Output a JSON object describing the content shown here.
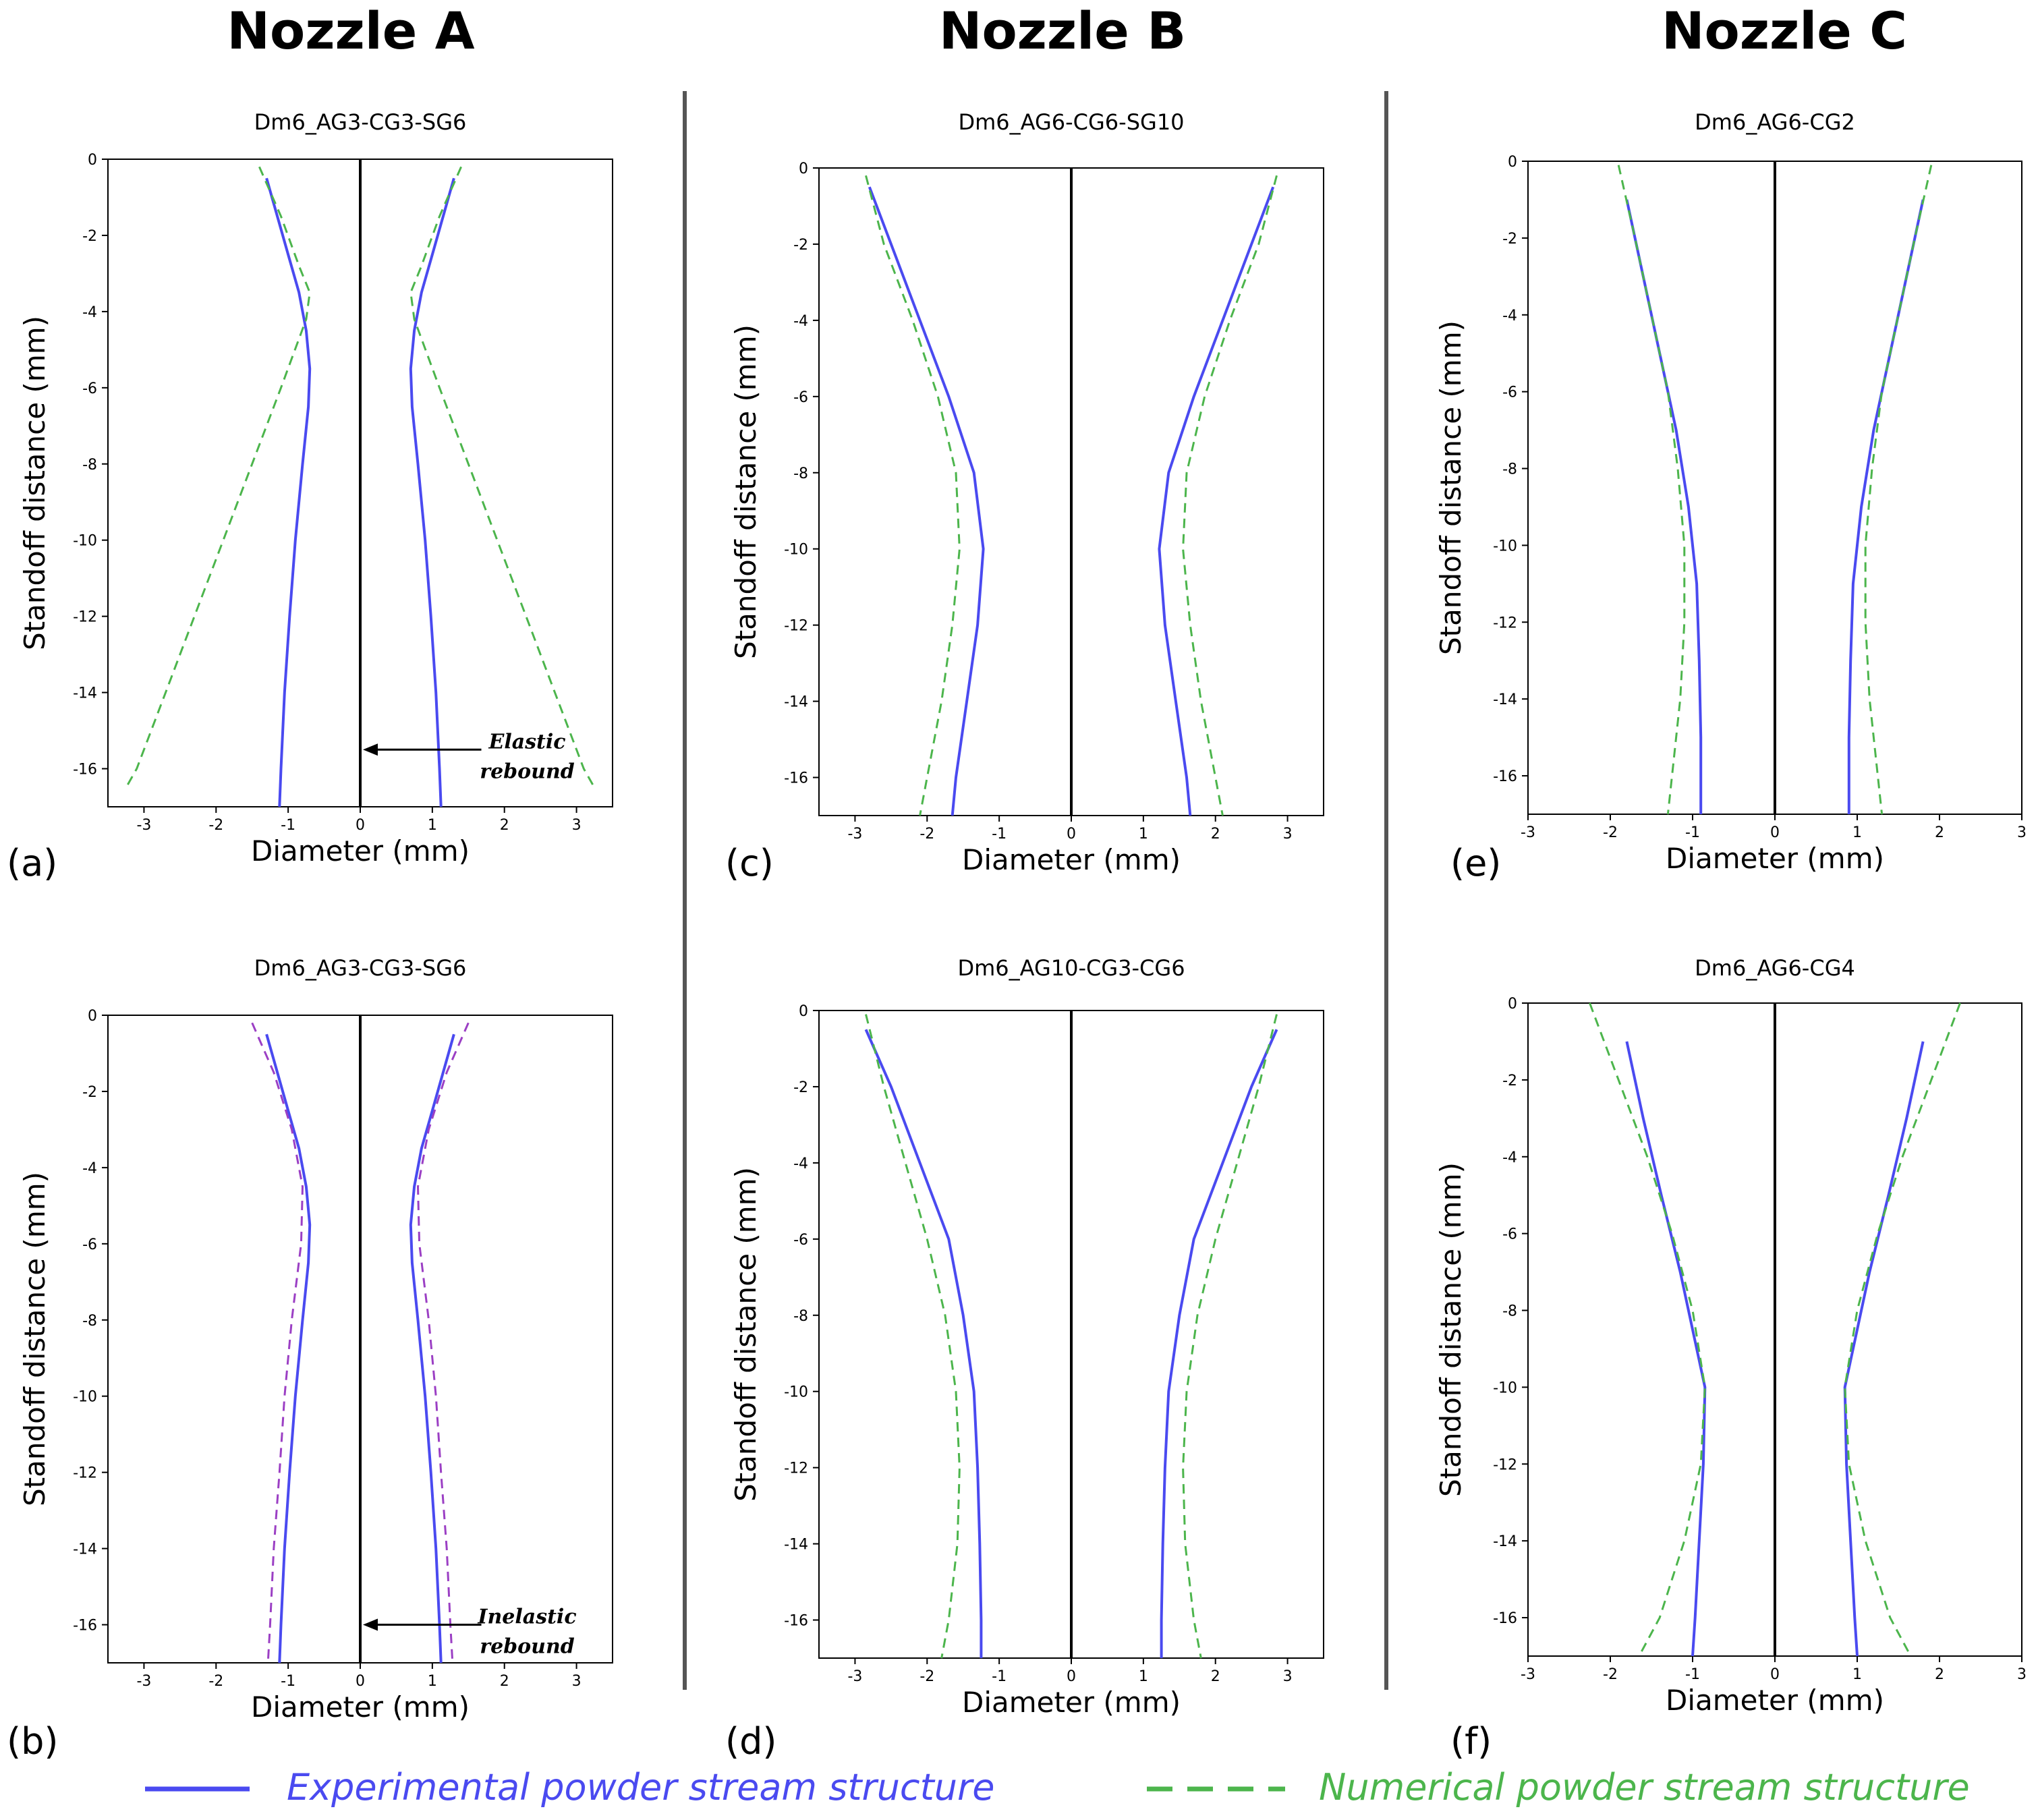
{
  "nozzles": [
    "Nozzle A",
    "Nozzle B",
    "Nozzle C"
  ],
  "legend": {
    "experimental": {
      "label": "Experimental powder stream structure",
      "color": "#4a4af0"
    },
    "numerical": {
      "label": "Numerical powder stream structure",
      "color": "#4cb54c"
    }
  },
  "chart_data": [
    {
      "id": "a",
      "type": "line",
      "panel_label": "(a)",
      "title": "Dm6_AG3-CG3-SG6",
      "xlabel": "Diameter (mm)",
      "ylabel": "Standoff distance (mm)",
      "xlim": [
        -3.5,
        3.5
      ],
      "ylim": [
        -17,
        0
      ],
      "xticks": [
        -3,
        -2,
        -1,
        0,
        1,
        2,
        3
      ],
      "yticks": [
        0,
        -2,
        -4,
        -6,
        -8,
        -10,
        -12,
        -14,
        -16
      ],
      "annotation": {
        "lines": [
          "Elastic",
          "rebound"
        ],
        "arrow_y": -15.5
      },
      "series": [
        {
          "style": "experimental",
          "right": [
            [
              1.3,
              -0.5
            ],
            [
              1.15,
              -1.5
            ],
            [
              1.0,
              -2.5
            ],
            [
              0.85,
              -3.5
            ],
            [
              0.75,
              -4.5
            ],
            [
              0.7,
              -5.5
            ],
            [
              0.72,
              -6.5
            ],
            [
              0.8,
              -8
            ],
            [
              0.9,
              -10
            ],
            [
              0.98,
              -12
            ],
            [
              1.05,
              -14
            ],
            [
              1.1,
              -16
            ],
            [
              1.12,
              -17
            ]
          ]
        },
        {
          "style": "numerical",
          "color": "#4cb54c",
          "right": [
            [
              1.4,
              -0.2
            ],
            [
              1.1,
              -1.5
            ],
            [
              0.85,
              -2.8
            ],
            [
              0.7,
              -3.5
            ],
            [
              0.75,
              -4.2
            ],
            [
              1.1,
              -6
            ],
            [
              1.5,
              -8
            ],
            [
              1.9,
              -10
            ],
            [
              2.3,
              -12
            ],
            [
              2.7,
              -14
            ],
            [
              3.1,
              -16
            ],
            [
              3.25,
              -16.5
            ]
          ]
        }
      ]
    },
    {
      "id": "b",
      "type": "line",
      "panel_label": "(b)",
      "title": "Dm6_AG3-CG3-SG6",
      "xlabel": "Diameter (mm)",
      "ylabel": "Standoff distance (mm)",
      "xlim": [
        -3.5,
        3.5
      ],
      "ylim": [
        -17,
        0
      ],
      "xticks": [
        -3,
        -2,
        -1,
        0,
        1,
        2,
        3
      ],
      "yticks": [
        0,
        -2,
        -4,
        -6,
        -8,
        -10,
        -12,
        -14,
        -16
      ],
      "annotation": {
        "lines": [
          "Inelastic",
          "rebound"
        ],
        "arrow_y": -16
      },
      "series": [
        {
          "style": "experimental",
          "right": [
            [
              1.3,
              -0.5
            ],
            [
              1.15,
              -1.5
            ],
            [
              1.0,
              -2.5
            ],
            [
              0.85,
              -3.5
            ],
            [
              0.75,
              -4.5
            ],
            [
              0.7,
              -5.5
            ],
            [
              0.72,
              -6.5
            ],
            [
              0.8,
              -8
            ],
            [
              0.9,
              -10
            ],
            [
              0.98,
              -12
            ],
            [
              1.05,
              -14
            ],
            [
              1.1,
              -16
            ],
            [
              1.12,
              -17
            ]
          ]
        },
        {
          "style": "numerical",
          "color": "#9b3fc4",
          "right": [
            [
              1.5,
              -0.2
            ],
            [
              1.2,
              -1.5
            ],
            [
              0.95,
              -3
            ],
            [
              0.8,
              -4.5
            ],
            [
              0.82,
              -6
            ],
            [
              0.95,
              -8
            ],
            [
              1.05,
              -10
            ],
            [
              1.12,
              -12
            ],
            [
              1.2,
              -14
            ],
            [
              1.25,
              -16
            ],
            [
              1.28,
              -17
            ]
          ]
        }
      ]
    },
    {
      "id": "c",
      "type": "line",
      "panel_label": "(c)",
      "title": "Dm6_AG6-CG6-SG10",
      "xlabel": "Diameter (mm)",
      "ylabel": "Standoff distance (mm)",
      "xlim": [
        -3.5,
        3.5
      ],
      "ylim": [
        -17,
        0
      ],
      "xticks": [
        -3,
        -2,
        -1,
        0,
        1,
        2,
        3
      ],
      "yticks": [
        0,
        -2,
        -4,
        -6,
        -8,
        -10,
        -12,
        -14,
        -16
      ],
      "series": [
        {
          "style": "experimental",
          "right": [
            [
              2.8,
              -0.5
            ],
            [
              2.5,
              -2
            ],
            [
              2.1,
              -4
            ],
            [
              1.7,
              -6
            ],
            [
              1.35,
              -8
            ],
            [
              1.22,
              -10
            ],
            [
              1.3,
              -12
            ],
            [
              1.45,
              -14
            ],
            [
              1.6,
              -16
            ],
            [
              1.65,
              -17
            ]
          ]
        },
        {
          "style": "numerical",
          "color": "#4cb54c",
          "right": [
            [
              2.85,
              -0.2
            ],
            [
              2.6,
              -2
            ],
            [
              2.2,
              -4
            ],
            [
              1.85,
              -6
            ],
            [
              1.6,
              -8
            ],
            [
              1.55,
              -10
            ],
            [
              1.65,
              -12
            ],
            [
              1.8,
              -14
            ],
            [
              2.0,
              -16
            ],
            [
              2.1,
              -17
            ]
          ]
        }
      ]
    },
    {
      "id": "d",
      "type": "line",
      "panel_label": "(d)",
      "title": "Dm6_AG10-CG3-CG6",
      "xlabel": "Diameter (mm)",
      "ylabel": "Standoff distance (mm)",
      "xlim": [
        -3.5,
        3.5
      ],
      "ylim": [
        -17,
        0
      ],
      "xticks": [
        -3,
        -2,
        -1,
        0,
        1,
        2,
        3
      ],
      "yticks": [
        0,
        -2,
        -4,
        -6,
        -8,
        -10,
        -12,
        -14,
        -16
      ],
      "series": [
        {
          "style": "experimental",
          "right": [
            [
              2.85,
              -0.5
            ],
            [
              2.5,
              -2
            ],
            [
              2.1,
              -4
            ],
            [
              1.7,
              -6
            ],
            [
              1.5,
              -8
            ],
            [
              1.35,
              -10
            ],
            [
              1.3,
              -12
            ],
            [
              1.27,
              -14
            ],
            [
              1.25,
              -16
            ],
            [
              1.25,
              -17
            ]
          ]
        },
        {
          "style": "numerical",
          "color": "#4cb54c",
          "right": [
            [
              2.85,
              -0.1
            ],
            [
              2.6,
              -2
            ],
            [
              2.3,
              -4
            ],
            [
              2.0,
              -6
            ],
            [
              1.75,
              -8
            ],
            [
              1.6,
              -10
            ],
            [
              1.55,
              -12
            ],
            [
              1.58,
              -14
            ],
            [
              1.7,
              -16
            ],
            [
              1.8,
              -17
            ]
          ]
        }
      ]
    },
    {
      "id": "e",
      "type": "line",
      "panel_label": "(e)",
      "title": "Dm6_AG6-CG2",
      "xlabel": "Diameter (mm)",
      "ylabel": "Standoff distance (mm)",
      "xlim": [
        -3,
        3
      ],
      "ylim": [
        -17,
        0
      ],
      "xticks": [
        -3,
        -2,
        -1,
        0,
        1,
        2,
        3
      ],
      "yticks": [
        0,
        -2,
        -4,
        -6,
        -8,
        -10,
        -12,
        -14,
        -16
      ],
      "series": [
        {
          "style": "experimental",
          "right": [
            [
              1.8,
              -1
            ],
            [
              1.6,
              -3
            ],
            [
              1.4,
              -5
            ],
            [
              1.2,
              -7
            ],
            [
              1.05,
              -9
            ],
            [
              0.95,
              -11
            ],
            [
              0.92,
              -13
            ],
            [
              0.9,
              -15
            ],
            [
              0.9,
              -17
            ]
          ]
        },
        {
          "style": "numerical",
          "color": "#4cb54c",
          "right": [
            [
              1.9,
              -0.1
            ],
            [
              1.7,
              -2
            ],
            [
              1.5,
              -4
            ],
            [
              1.3,
              -6
            ],
            [
              1.18,
              -8
            ],
            [
              1.1,
              -10
            ],
            [
              1.1,
              -12
            ],
            [
              1.15,
              -14
            ],
            [
              1.25,
              -16
            ],
            [
              1.3,
              -17
            ]
          ]
        }
      ]
    },
    {
      "id": "f",
      "type": "line",
      "panel_label": "(f)",
      "title": "Dm6_AG6-CG4",
      "xlabel": "Diameter (mm)",
      "ylabel": "Standoff distance (mm)",
      "xlim": [
        -3,
        3
      ],
      "ylim": [
        -17,
        0
      ],
      "xticks": [
        -3,
        -2,
        -1,
        0,
        1,
        2,
        3
      ],
      "yticks": [
        0,
        -2,
        -4,
        -6,
        -8,
        -10,
        -12,
        -14,
        -16
      ],
      "series": [
        {
          "style": "experimental",
          "right": [
            [
              1.8,
              -1
            ],
            [
              1.6,
              -3
            ],
            [
              1.38,
              -5
            ],
            [
              1.15,
              -7
            ],
            [
              0.95,
              -9
            ],
            [
              0.85,
              -10
            ],
            [
              0.87,
              -12
            ],
            [
              0.92,
              -14
            ],
            [
              0.97,
              -16
            ],
            [
              1.0,
              -17
            ]
          ]
        },
        {
          "style": "numerical",
          "color": "#4cb54c",
          "right": [
            [
              2.25,
              0
            ],
            [
              1.9,
              -2
            ],
            [
              1.55,
              -4
            ],
            [
              1.25,
              -6
            ],
            [
              1.0,
              -8
            ],
            [
              0.85,
              -10
            ],
            [
              0.9,
              -12
            ],
            [
              1.1,
              -14
            ],
            [
              1.4,
              -16
            ],
            [
              1.65,
              -17
            ]
          ]
        }
      ]
    }
  ]
}
